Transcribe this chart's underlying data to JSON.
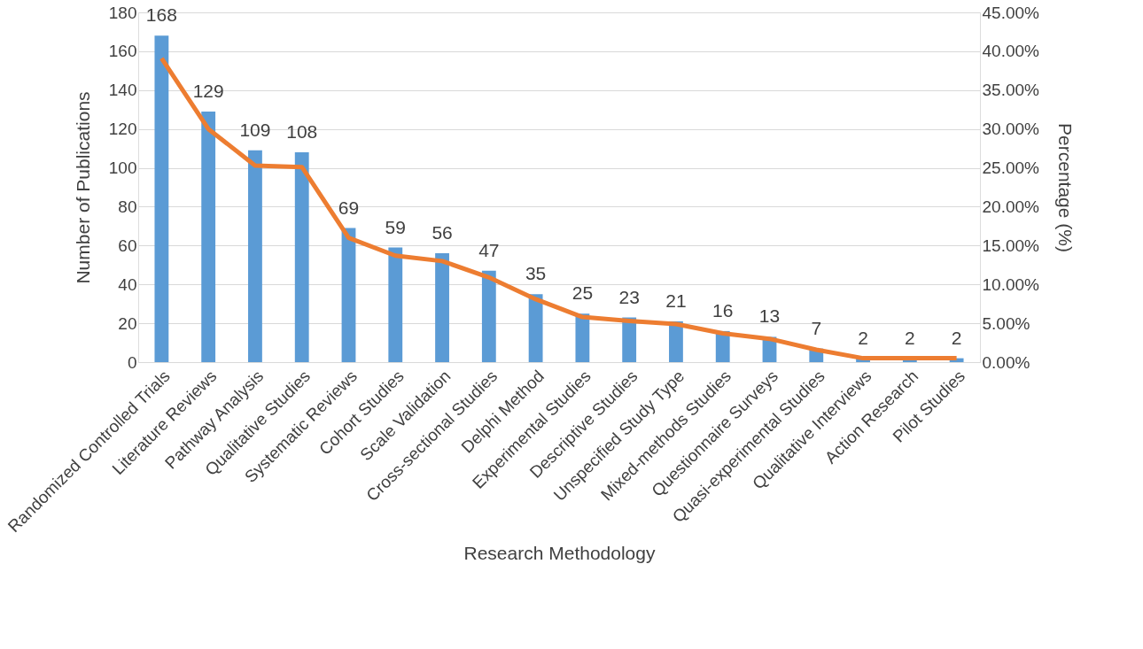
{
  "chart_data": {
    "type": "bar",
    "xlabel": "Research Methodology",
    "ylabel": "Number of Publications",
    "y2label": "Percentage (%)",
    "categories": [
      "Randomized Controlled Trials",
      "Literature Reviews",
      "Pathway Analysis",
      "Qualitative Studies",
      "Systematic Reviews",
      "Cohort Studies",
      "Scale Validation",
      "Cross-sectional Studies",
      "Delphi Method",
      "Experimental Studies",
      "Descriptive Studies",
      "Unspecified Study Type",
      "Mixed-methods Studies",
      "Questionnaire Surveys",
      "Quasi-experimental Studies",
      "Qualitative Interviews",
      "Action Research",
      "Pilot Studies"
    ],
    "series": [
      {
        "color": "#5b9bd5",
        "values": [
          168,
          129,
          109,
          108,
          69,
          59,
          56,
          47,
          35,
          25,
          23,
          21,
          16,
          13,
          7,
          2,
          2,
          2
        ],
        "value_labels": [
          "168",
          "129",
          "109",
          "108",
          "69",
          "59",
          "56",
          "47",
          "35",
          "25",
          "23",
          "21",
          "16",
          "13",
          "7",
          "2",
          "2",
          "2"
        ]
      },
      {
        "type": "line",
        "axis": "y2",
        "color": "#ed7d31",
        "values": [
          39.1,
          30.0,
          25.3,
          25.1,
          16.0,
          13.7,
          13.0,
          10.9,
          8.1,
          5.8,
          5.3,
          4.9,
          3.7,
          3.0,
          1.6,
          0.5,
          0.5,
          0.5
        ]
      }
    ],
    "ylim": [
      0,
      180
    ],
    "yticks": [
      0,
      20,
      40,
      60,
      80,
      100,
      120,
      140,
      160,
      180
    ],
    "y2lim": [
      0,
      45
    ],
    "y2ticks": [
      {
        "value": 0,
        "label": "0.00%"
      },
      {
        "value": 5,
        "label": "5.00%"
      },
      {
        "value": 10,
        "label": "10.00%"
      },
      {
        "value": 15,
        "label": "15.00%"
      },
      {
        "value": 20,
        "label": "20.00%"
      },
      {
        "value": 25,
        "label": "25.00%"
      },
      {
        "value": 30,
        "label": "30.00%"
      },
      {
        "value": 35,
        "label": "35.00%"
      },
      {
        "value": 40,
        "label": "40.00%"
      },
      {
        "value": 45,
        "label": "45.00%"
      }
    ],
    "grid": "y",
    "legend": false,
    "marker": "none",
    "line_style": "solid"
  }
}
